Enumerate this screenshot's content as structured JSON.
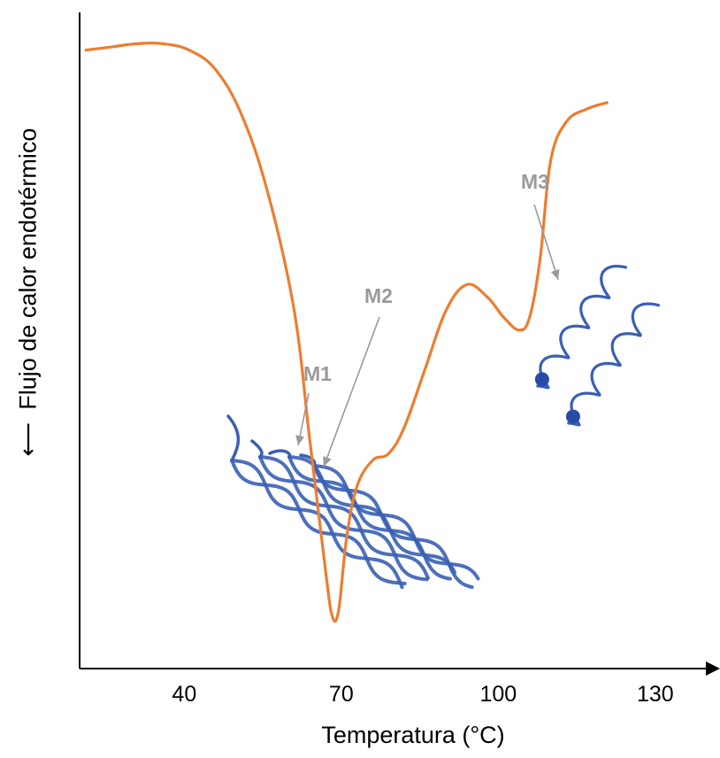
{
  "chart_data": {
    "type": "line",
    "title": "",
    "xlabel": "Temperatura (°C)",
    "ylabel": "Flujo de calor endotérmico",
    "xlim": [
      20,
      140
    ],
    "x_ticks": [
      40,
      70,
      100,
      130
    ],
    "y_ticks": [],
    "grid": false,
    "line_color": "#ed7d31",
    "series": [
      {
        "name": "",
        "x": [
          21,
          26,
          31,
          36,
          41,
          46,
          51,
          56,
          61,
          64,
          67,
          68.3,
          69.5,
          71,
          73,
          76,
          79,
          82,
          86,
          90,
          94,
          98,
          101,
          104,
          106,
          108,
          110,
          113,
          117,
          121
        ],
        "y": [
          95,
          95.5,
          96,
          96,
          95,
          92,
          85,
          73,
          55,
          35,
          15,
          8,
          9,
          20,
          28,
          32,
          33,
          37,
          46,
          55,
          59,
          57,
          54,
          52,
          54,
          63,
          78,
          84,
          86,
          87
        ]
      }
    ],
    "annotations": [
      {
        "label": "M1",
        "x": 68.3,
        "structure": "fibrillar triple-helix bundle"
      },
      {
        "label": "M2",
        "x": 79,
        "structure": "fibrillar triple-helix bundle"
      },
      {
        "label": "M3",
        "x": 104,
        "structure": "single helix chains"
      }
    ],
    "annotation_color": "#9a9a9a",
    "illustration_color": "#3a5fb5"
  }
}
